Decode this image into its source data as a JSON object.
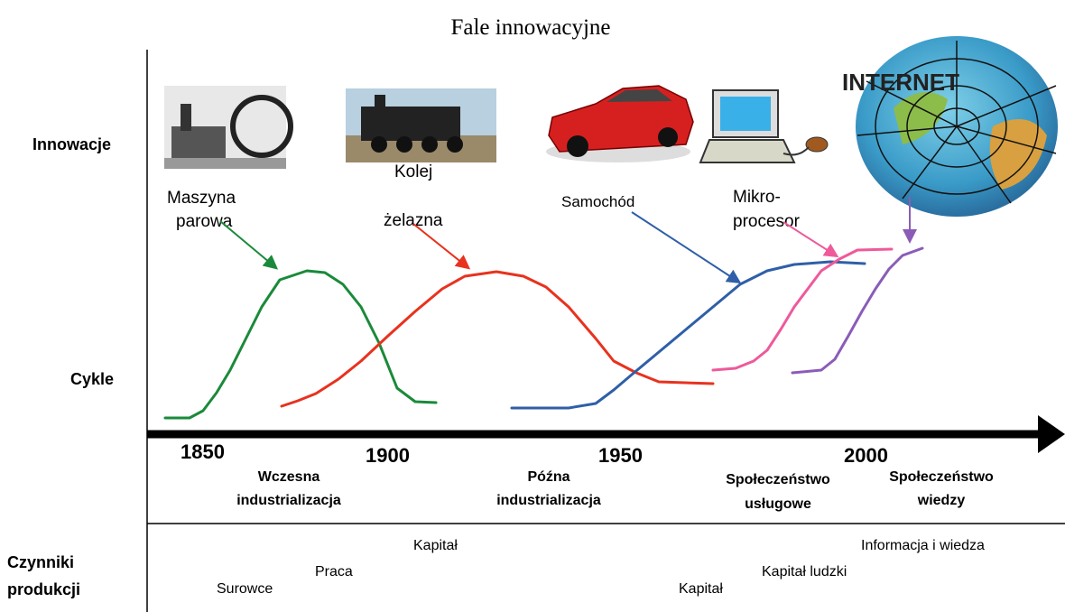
{
  "title": "Fale innowacyjne",
  "row_labels": {
    "innovations": "Innowacje",
    "cycles": "Cykle",
    "factors": [
      "Czynniki",
      "produkcji"
    ]
  },
  "innovations": [
    {
      "label": [
        "Maszyna",
        "parowa"
      ]
    },
    {
      "label": [
        "Kolej",
        "żelazna"
      ]
    },
    {
      "label": [
        "Samochód"
      ]
    },
    {
      "label": [
        "Mikro-",
        "procesor"
      ]
    },
    {
      "label": [
        "INTERNET"
      ]
    }
  ],
  "years": [
    "1850",
    "1900",
    "1950",
    "2000"
  ],
  "eras": [
    [
      "Wczesna",
      "industrializacja"
    ],
    [
      "Późna",
      "industrializacja"
    ],
    [
      "Społeczeństwo",
      "usługowe"
    ],
    [
      "Społeczeństwo",
      "wiedzy"
    ]
  ],
  "factors": [
    "Kapitał",
    "Praca",
    "Surowce",
    "Informacja i wiedza",
    "Kapitał ludzki",
    "Kapitał"
  ]
}
